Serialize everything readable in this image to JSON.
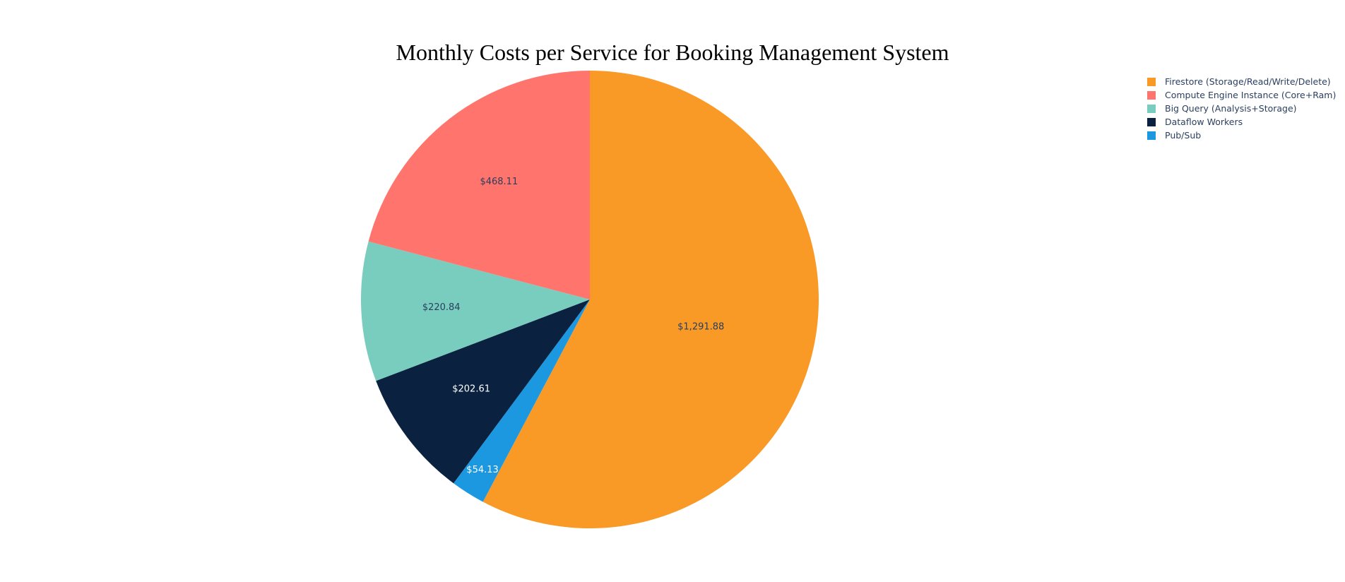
{
  "chart_data": {
    "type": "pie",
    "title": "Monthly Costs per Service for Booking Management System",
    "legend_position": "top-right",
    "slices": [
      {
        "name": "Firestore (Storage/Read/Write/Delete)",
        "value": 1291.88,
        "label": "$1,291.88",
        "color": "#f99a27",
        "label_color": "#2a3f5f"
      },
      {
        "name": "Pub/Sub",
        "value": 54.13,
        "label": "$54.13",
        "color": "#1b98e0",
        "label_color": "#ffffff"
      },
      {
        "name": "Dataflow Workers",
        "value": 202.61,
        "label": "$202.61",
        "color": "#0b2140",
        "label_color": "#ffffff"
      },
      {
        "name": "Big Query (Analysis+Storage)",
        "value": 220.84,
        "label": "$220.84",
        "color": "#79cdbe",
        "label_color": "#2a3f5f"
      },
      {
        "name": "Compute Engine Instance (Core+Ram)",
        "value": 468.11,
        "label": "$468.11",
        "color": "#ff746c",
        "label_color": "#2a3f5f"
      }
    ],
    "legend_order": [
      "Firestore (Storage/Read/Write/Delete)",
      "Compute Engine Instance (Core+Ram)",
      "Big Query (Analysis+Storage)",
      "Dataflow Workers",
      "Pub/Sub"
    ]
  }
}
